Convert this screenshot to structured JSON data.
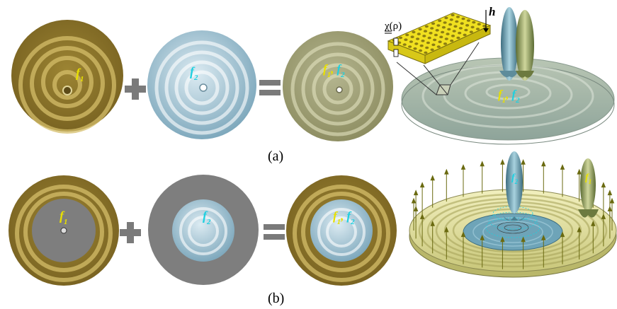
{
  "rows": [
    {
      "id": "a",
      "caption": "(a)",
      "disk1_label": {
        "base": "f",
        "sub": "1"
      },
      "disk2_label": {
        "base": "f",
        "sub": "2"
      },
      "disk3_label": {
        "base1": "f",
        "sub1": "1",
        "sep": ",",
        "base2": "f",
        "sub2": "2"
      },
      "panel3d_label": {
        "base1": "f",
        "sub1": "1",
        "sep": ",",
        "base2": "f",
        "sub2": "2"
      }
    },
    {
      "id": "b",
      "caption": "(b)",
      "disk1_label": {
        "base": "f",
        "sub": "1"
      },
      "disk2_label": {
        "base": "f",
        "sub": "2"
      },
      "disk3_label": {
        "base1": "f",
        "sub1": "1",
        "sep": ",",
        "base2": "f",
        "sub2": "2"
      },
      "beam_labels": [
        {
          "base": "f",
          "sub": "2"
        },
        {
          "base": "f",
          "sub": "1"
        }
      ]
    }
  ],
  "inset": {
    "chi_label": "χ(ρ)",
    "h_label": "h"
  },
  "colors": {
    "gold": "#b79a3c",
    "gold_light": "#d9c47a",
    "blue": "#8fb8cc",
    "blue_light": "#d6e8ef",
    "mix": "#a8a77a",
    "gray": "#7e7e7e",
    "plus_equals": "#7a7a7a",
    "label_yellow": "#e8e000",
    "label_cyan": "#1fd0e0",
    "yellow_chip": "#f0e020"
  },
  "operators": {
    "plus": "+",
    "equals": "="
  }
}
